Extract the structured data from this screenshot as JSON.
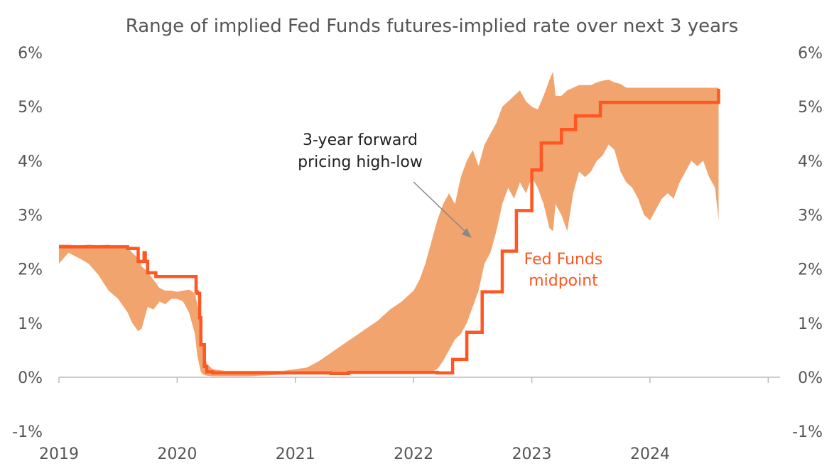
{
  "chart_data": {
    "type": "area",
    "title": "Range of implied Fed Funds futures-implied rate over next 3 years",
    "xlabel": "",
    "ylabel": "",
    "x_ticks": [
      "2019",
      "2020",
      "2021",
      "2022",
      "2023",
      "2024"
    ],
    "y_ticks": [
      "-1%",
      "0%",
      "1%",
      "2%",
      "3%",
      "4%",
      "5%",
      "6%"
    ],
    "y_ticks_right": [
      "-1%",
      "0%",
      "1%",
      "2%",
      "3%",
      "4%",
      "5%",
      "6%"
    ],
    "ylim": [
      -1,
      6
    ],
    "xlim": [
      2019.0,
      2025.1
    ],
    "grid": false,
    "colors": {
      "band": "#f2a46e",
      "midpoint": "#ff5722",
      "axis": "#bbbbbb",
      "text": "#555555",
      "arrow": "#888888"
    },
    "annotations": [
      {
        "id": "band-label",
        "lines": [
          "3-year forward",
          "pricing high-low"
        ]
      },
      {
        "id": "midpoint-label",
        "lines": [
          "Fed Funds",
          "midpoint"
        ]
      }
    ],
    "series": [
      {
        "name": "3-year forward pricing high-low",
        "type": "band",
        "x": [
          2019.0,
          2019.08,
          2019.17,
          2019.25,
          2019.33,
          2019.42,
          2019.5,
          2019.58,
          2019.62,
          2019.67,
          2019.7,
          2019.75,
          2019.8,
          2019.85,
          2019.9,
          2019.95,
          2020.0,
          2020.05,
          2020.1,
          2020.15,
          2020.17,
          2020.2,
          2020.22,
          2020.25,
          2020.3,
          2020.4,
          2020.5,
          2020.6,
          2020.7,
          2020.8,
          2020.9,
          2021.0,
          2021.1,
          2021.2,
          2021.3,
          2021.4,
          2021.5,
          2021.6,
          2021.7,
          2021.8,
          2021.9,
          2022.0,
          2022.05,
          2022.1,
          2022.15,
          2022.2,
          2022.25,
          2022.3,
          2022.35,
          2022.4,
          2022.45,
          2022.5,
          2022.55,
          2022.6,
          2022.65,
          2022.7,
          2022.75,
          2022.8,
          2022.85,
          2022.9,
          2022.95,
          2023.0,
          2023.05,
          2023.1,
          2023.15,
          2023.18,
          2023.2,
          2023.25,
          2023.3,
          2023.35,
          2023.4,
          2023.45,
          2023.5,
          2023.55,
          2023.6,
          2023.65,
          2023.7,
          2023.75,
          2023.8,
          2023.85,
          2023.9,
          2023.95,
          2024.0,
          2024.05,
          2024.1,
          2024.15,
          2024.2,
          2024.25,
          2024.3,
          2024.35,
          2024.4,
          2024.45,
          2024.5,
          2024.55,
          2024.58
        ],
        "high": [
          2.45,
          2.45,
          2.43,
          2.45,
          2.44,
          2.45,
          2.4,
          2.4,
          2.3,
          2.2,
          2.05,
          1.95,
          1.8,
          1.65,
          1.6,
          1.6,
          1.58,
          1.6,
          1.62,
          1.55,
          1.35,
          1.0,
          0.55,
          0.25,
          0.15,
          0.12,
          0.12,
          0.12,
          0.12,
          0.12,
          0.12,
          0.15,
          0.18,
          0.3,
          0.45,
          0.6,
          0.75,
          0.9,
          1.05,
          1.25,
          1.4,
          1.6,
          1.8,
          2.1,
          2.5,
          2.9,
          3.2,
          3.4,
          3.2,
          3.7,
          4.0,
          4.2,
          3.9,
          4.3,
          4.5,
          4.7,
          5.0,
          5.1,
          5.2,
          5.3,
          5.1,
          5.0,
          4.95,
          5.2,
          5.5,
          5.65,
          5.2,
          5.2,
          5.3,
          5.35,
          5.4,
          5.4,
          5.4,
          5.45,
          5.48,
          5.5,
          5.45,
          5.42,
          5.35,
          5.35,
          5.35,
          5.35,
          5.35,
          5.35,
          5.35,
          5.35,
          5.35,
          5.35,
          5.35,
          5.35,
          5.35,
          5.35,
          5.35,
          5.35,
          5.35
        ],
        "low": [
          2.1,
          2.3,
          2.2,
          2.1,
          1.9,
          1.6,
          1.45,
          1.2,
          1.0,
          0.85,
          0.9,
          1.3,
          1.25,
          1.4,
          1.35,
          1.45,
          1.45,
          1.4,
          1.2,
          0.8,
          0.4,
          0.1,
          0.05,
          0.03,
          0.02,
          0.02,
          0.02,
          0.02,
          0.03,
          0.04,
          0.05,
          0.06,
          0.07,
          0.07,
          0.07,
          0.07,
          0.08,
          0.08,
          0.08,
          0.08,
          0.08,
          0.08,
          0.08,
          0.08,
          0.1,
          0.15,
          0.3,
          0.5,
          0.7,
          0.8,
          1.0,
          1.3,
          1.6,
          2.1,
          2.3,
          2.7,
          3.2,
          3.5,
          3.3,
          3.6,
          3.4,
          3.7,
          3.5,
          3.2,
          2.75,
          2.7,
          3.2,
          3.0,
          2.7,
          3.4,
          3.8,
          3.7,
          3.8,
          4.0,
          4.1,
          4.3,
          4.2,
          3.8,
          3.6,
          3.5,
          3.3,
          3.0,
          2.9,
          3.1,
          3.3,
          3.4,
          3.3,
          3.6,
          3.8,
          4.0,
          3.9,
          4.0,
          3.7,
          3.5,
          2.9
        ]
      },
      {
        "name": "Fed Funds midpoint",
        "type": "step",
        "x": [
          2019.0,
          2019.58,
          2019.67,
          2019.72,
          2019.73,
          2019.75,
          2019.82,
          2020.16,
          2020.17,
          2020.19,
          2020.2,
          2020.23,
          2020.25,
          2020.3,
          2021.3,
          2021.45,
          2022.2,
          2022.33,
          2022.45,
          2022.58,
          2022.75,
          2022.87,
          2023.0,
          2023.08,
          2023.25,
          2023.37,
          2023.58,
          2024.58
        ],
        "y": [
          2.41,
          2.38,
          2.14,
          2.3,
          2.14,
          1.93,
          1.86,
          1.58,
          1.55,
          1.1,
          0.6,
          0.2,
          0.1,
          0.08,
          0.07,
          0.09,
          0.08,
          0.33,
          0.83,
          1.58,
          2.33,
          3.08,
          3.83,
          4.33,
          4.58,
          4.83,
          5.08,
          5.33
        ]
      }
    ]
  }
}
